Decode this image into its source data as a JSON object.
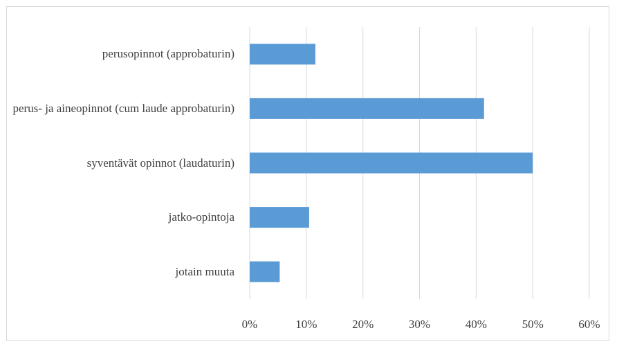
{
  "chart_data": {
    "type": "barh",
    "categories": [
      "perusopinnot (approbaturin)",
      "perus- ja aineopinnot (cum laude approbaturin)",
      "syventävät opinnot (laudaturin)",
      "jatko-opintoja",
      "jotain muuta"
    ],
    "values": [
      11.6,
      41.4,
      50,
      10.5,
      5.3
    ],
    "color": "#5b9bd5",
    "xlim": [
      0,
      60
    ],
    "xticks": [
      {
        "value": 0,
        "label": "0%"
      },
      {
        "value": 10,
        "label": "10%"
      },
      {
        "value": 20,
        "label": "20%"
      },
      {
        "value": 30,
        "label": "30%"
      },
      {
        "value": 40,
        "label": "40%"
      },
      {
        "value": 50,
        "label": "50%"
      },
      {
        "value": 60,
        "label": "60%"
      }
    ],
    "grid": true
  }
}
